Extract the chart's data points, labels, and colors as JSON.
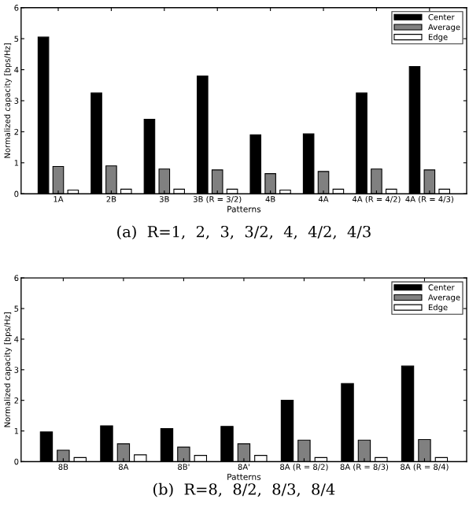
{
  "chart_data": [
    {
      "type": "bar",
      "xlabel": "Patterns",
      "ylabel": "Normalized capacity [bps/Hz]",
      "categories": [
        "1A",
        "2B",
        "3B",
        "3B (R = 3/2)",
        "4B",
        "4A",
        "4A (R = 4/2)",
        "4A (R = 4/3)"
      ],
      "series": [
        {
          "name": "Center",
          "color": "#000000",
          "values": [
            5.05,
            3.25,
            2.4,
            3.8,
            1.9,
            1.93,
            3.25,
            4.1
          ]
        },
        {
          "name": "Average",
          "color": "#808080",
          "values": [
            0.88,
            0.9,
            0.8,
            0.77,
            0.65,
            0.72,
            0.8,
            0.77
          ]
        },
        {
          "name": "Edge",
          "color": "#ffffff",
          "values": [
            0.12,
            0.15,
            0.15,
            0.15,
            0.12,
            0.15,
            0.15,
            0.15
          ]
        }
      ],
      "ylim": [
        0,
        6
      ],
      "yticks": [
        0,
        1,
        2,
        3,
        4,
        5,
        6
      ],
      "legend": "top right",
      "annotations": [
        "(a)  R=1,  2,  3,  3/2,  4,  4/2,  4/3"
      ]
    },
    {
      "type": "bar",
      "xlabel": "Patterns",
      "ylabel": "Normalized capacity [bps/Hz]",
      "categories": [
        "8B",
        "8A",
        "8B'",
        "8A'",
        "8A (R = 8/2)",
        "8A (R = 8/3)",
        "8A (R = 8/4)"
      ],
      "series": [
        {
          "name": "Center",
          "color": "#000000",
          "values": [
            0.97,
            1.17,
            1.08,
            1.15,
            2.0,
            2.55,
            3.12
          ]
        },
        {
          "name": "Average",
          "color": "#808080",
          "values": [
            0.37,
            0.58,
            0.47,
            0.58,
            0.7,
            0.7,
            0.72
          ]
        },
        {
          "name": "Edge",
          "color": "#ffffff",
          "values": [
            0.13,
            0.22,
            0.2,
            0.2,
            0.13,
            0.13,
            0.13
          ]
        }
      ],
      "ylim": [
        0,
        6
      ],
      "yticks": [
        0,
        1,
        2,
        3,
        4,
        5,
        6
      ],
      "legend": "top right",
      "annotations": [
        "(b)  R=8,  8/2,  8/3,  8/4"
      ]
    }
  ]
}
